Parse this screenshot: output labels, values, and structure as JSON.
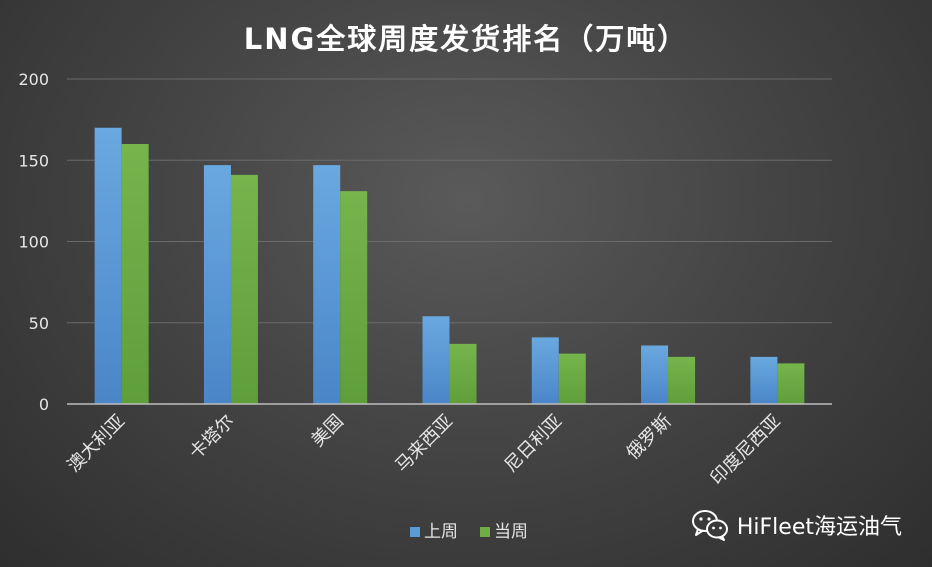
{
  "chart_data": {
    "type": "bar",
    "title": "LNG全球周度发货排名（万吨）",
    "categories": [
      "澳大利亚",
      "卡塔尔",
      "美国",
      "马来西亚",
      "尼日利亚",
      "俄罗斯",
      "印度尼西亚"
    ],
    "series": [
      {
        "name": "上周",
        "color": "#5b9bd5",
        "values": [
          170,
          147,
          147,
          54,
          41,
          36,
          29
        ]
      },
      {
        "name": "当周",
        "color": "#70ad47",
        "values": [
          160,
          141,
          131,
          37,
          31,
          29,
          25
        ]
      }
    ],
    "yticks": [
      0,
      50,
      100,
      150,
      200
    ],
    "ylim": [
      0,
      200
    ],
    "grid": true,
    "legend": "bottom"
  },
  "watermark": {
    "text": "HiFleet海运油气",
    "icon": "wechat-icon"
  }
}
